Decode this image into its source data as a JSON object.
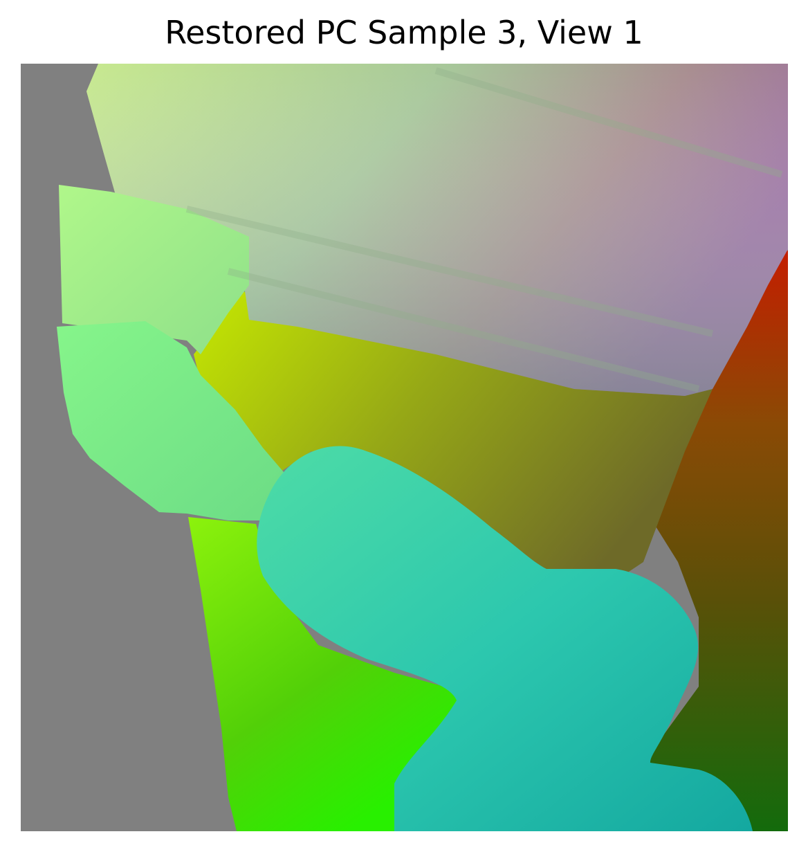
{
  "figure": {
    "title": "Restored PC Sample 3, View 1"
  },
  "image": {
    "description_icon": "point-cloud-render",
    "background_color": "#808080",
    "palette": {
      "yellow_green": "#c7e58a",
      "pink_purple": "#a0709a",
      "red": "#c01c00",
      "teal": "#3ccfae",
      "bright_green": "#3cf000",
      "dark_green": "#0f6a0a",
      "olive": "#8a9a10",
      "mint": "#7ef090"
    }
  }
}
